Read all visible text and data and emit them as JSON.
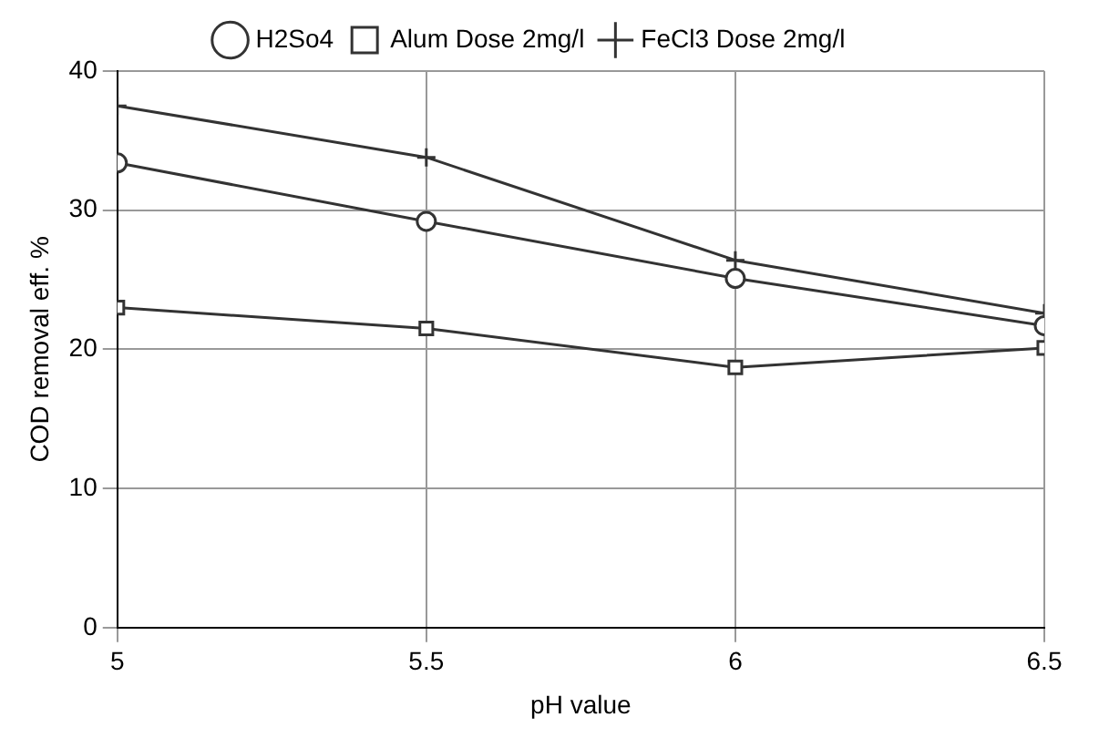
{
  "chart_data": {
    "type": "line",
    "xlabel": "pH value",
    "ylabel": "COD removal eff. %",
    "x": [
      5,
      5.5,
      6,
      6.5
    ],
    "series": [
      {
        "name": "H2So4",
        "color": "#333333",
        "values": [
          33.4,
          29.2,
          25.1,
          21.7
        ],
        "marker": "circle"
      },
      {
        "name": "Alum Dose 2mg/l",
        "color": "#333333",
        "values": [
          23.0,
          21.5,
          18.7,
          20.1
        ],
        "marker": "square"
      },
      {
        "name": "FeCl3 Dose 2mg/l",
        "color": "#333333",
        "values": [
          37.5,
          33.8,
          26.4,
          22.6
        ],
        "marker": "cross"
      }
    ],
    "xlim": [
      5,
      6.5
    ],
    "xticks": [
      5,
      5.5,
      6,
      6.5
    ],
    "ylim": [
      0,
      40
    ],
    "yticks": [
      0,
      10,
      20,
      30,
      40
    ],
    "grid": true,
    "legend": "top",
    "line_style": "solid"
  }
}
